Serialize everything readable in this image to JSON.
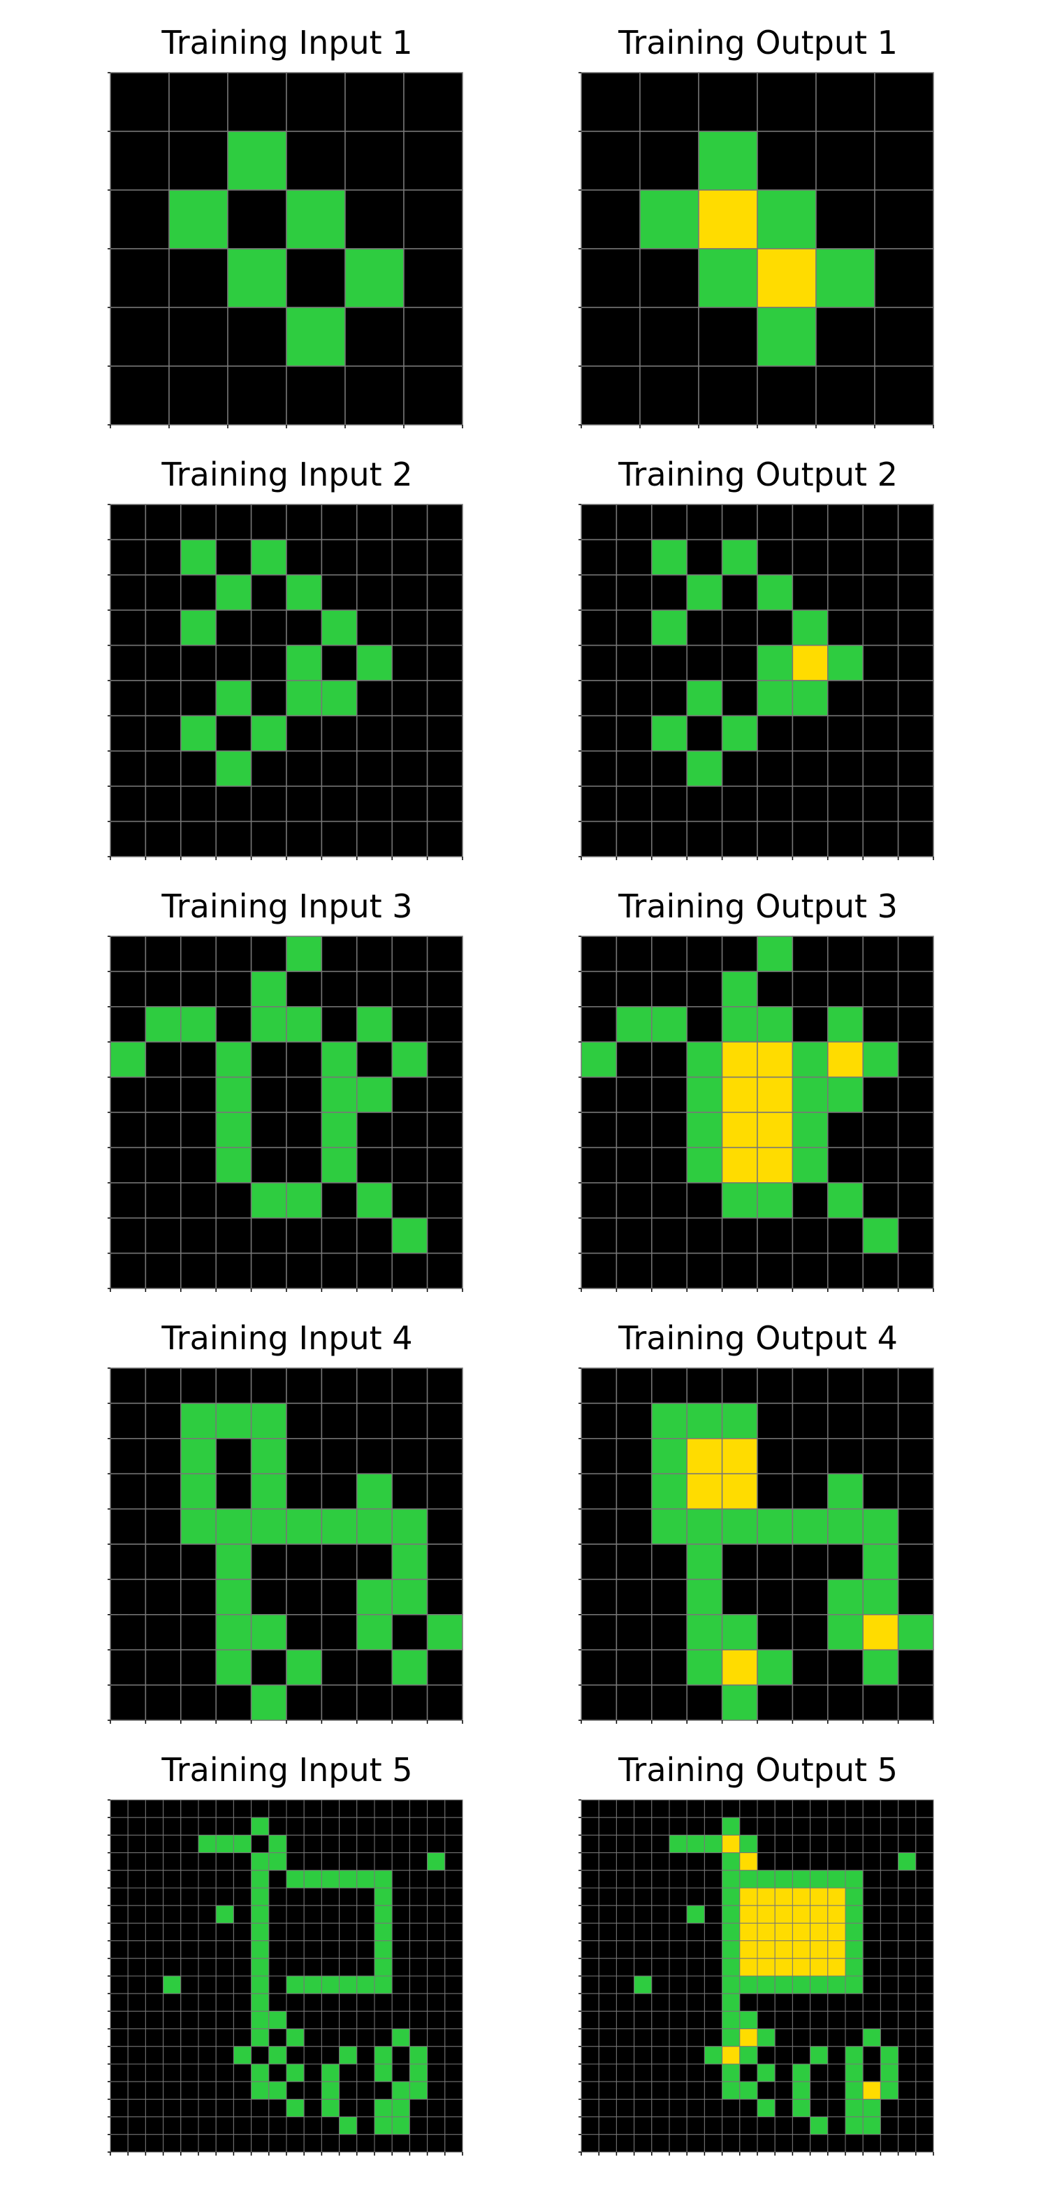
{
  "colors": {
    "0": "#000000",
    "3": "#2ecc40",
    "4": "#ffdc00",
    "grid": "#777777"
  },
  "panels": [
    {
      "title": "Training Input 1",
      "grid": [
        "000000",
        "001000",
        "010100",
        "001010",
        "000100",
        "000000"
      ]
    },
    {
      "title": "Training Output 1",
      "grid": [
        "000000",
        "001000",
        "012100",
        "001210",
        "000100",
        "000000"
      ]
    },
    {
      "title": "Training Input 2",
      "grid": [
        "0000000000",
        "0010100000",
        "0001010000",
        "0010001000",
        "0000010100",
        "0001011000",
        "0010100000",
        "0001000000",
        "0000000000",
        "0000000000"
      ]
    },
    {
      "title": "Training Output 2",
      "grid": [
        "0000000000",
        "0010100000",
        "0001010000",
        "0010001000",
        "0000012100",
        "0001011000",
        "0010100000",
        "0001000000",
        "0000000000",
        "0000000000"
      ]
    },
    {
      "title": "Training Input 3",
      "grid": [
        "0000010000",
        "0000100000",
        "0110110100",
        "1001001010",
        "0001001100",
        "0001001000",
        "0001001000",
        "0000110100",
        "0000000010",
        "0000000000"
      ]
    },
    {
      "title": "Training Output 3",
      "grid": [
        "0000010000",
        "0000100000",
        "0110110100",
        "1001221210",
        "0001221100",
        "0001221000",
        "0001221000",
        "0000110100",
        "0000000010",
        "0000000000"
      ]
    },
    {
      "title": "Training Input 4",
      "grid": [
        "0000000000",
        "0011100000",
        "0010100000",
        "0010100100",
        "0011111110",
        "0001000010",
        "0001000110",
        "0001100101",
        "0001010010",
        "0000100000"
      ]
    },
    {
      "title": "Training Output 4",
      "grid": [
        "0000000000",
        "0011100000",
        "0012200000",
        "0012200100",
        "0011111110",
        "0001000010",
        "0001000110",
        "0001100121",
        "0001210010",
        "0000100000"
      ]
    },
    {
      "title": "Training Input 5",
      "grid": [
        "00000000000000000000",
        "00000000100000000000",
        "00000111010000000000",
        "00000000110000000010",
        "00000000101111110000",
        "00000000100000010000",
        "00000010100000010000",
        "00000000100000010000",
        "00000000100000010000",
        "00000000100000010000",
        "00010000101111110000",
        "00000000100000000000",
        "00000000110000000000",
        "00000000101000001000",
        "00000001010001010100",
        "00000000101010010100",
        "00000000110010001100",
        "00000000001010011000",
        "00000000000001011000",
        "00000000000000000000"
      ]
    },
    {
      "title": "Training Output 5",
      "grid": [
        "00000000000000000000",
        "00000000100000000000",
        "00000111210000000000",
        "00000000120000000010",
        "00000000111111110000",
        "00000000122222210000",
        "00000010122222210000",
        "00000000122222210000",
        "00000000122222210000",
        "00000000122222210000",
        "00010000111111110000",
        "00000000100000000000",
        "00000000110000000000",
        "00000000121000001000",
        "00000001210001010100",
        "00000000101010010100",
        "00000000110010012100",
        "00000000001010011000",
        "00000000000001011000",
        "00000000000000000000"
      ]
    }
  ]
}
